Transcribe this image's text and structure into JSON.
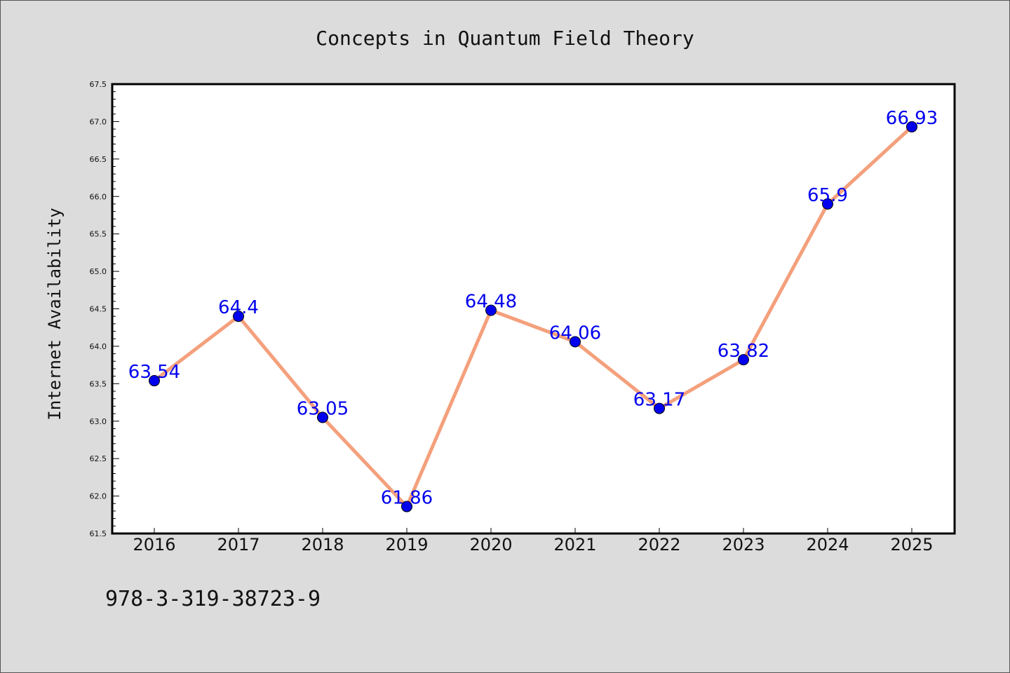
{
  "chart_data": {
    "type": "line",
    "title": "Concepts in Quantum Field Theory",
    "xlabel": "",
    "ylabel": "Internet Availability",
    "x": [
      "2016",
      "2017",
      "2018",
      "2019",
      "2020",
      "2021",
      "2022",
      "2023",
      "2024",
      "2025"
    ],
    "values": [
      63.54,
      64.4,
      63.05,
      61.86,
      64.48,
      64.06,
      63.17,
      63.82,
      65.9,
      66.93
    ],
    "data_labels": [
      "63.54",
      "64.4",
      "63.05",
      "61.86",
      "64.48",
      "64.06",
      "63.17",
      "63.82",
      "65.9",
      "66.93"
    ],
    "ylim": [
      61.5,
      67.5
    ],
    "yticks": [
      "61.5",
      "62.0",
      "62.5",
      "63.0",
      "63.5",
      "64.0",
      "64.5",
      "65.0",
      "65.5",
      "66.0",
      "66.5",
      "67.0",
      "67.5"
    ],
    "grid": false,
    "line_color": "#f4a07c",
    "marker_color": "#0000ee",
    "label_color": "#0000ee"
  },
  "footer": {
    "isbn": "978-3-319-38723-9"
  }
}
